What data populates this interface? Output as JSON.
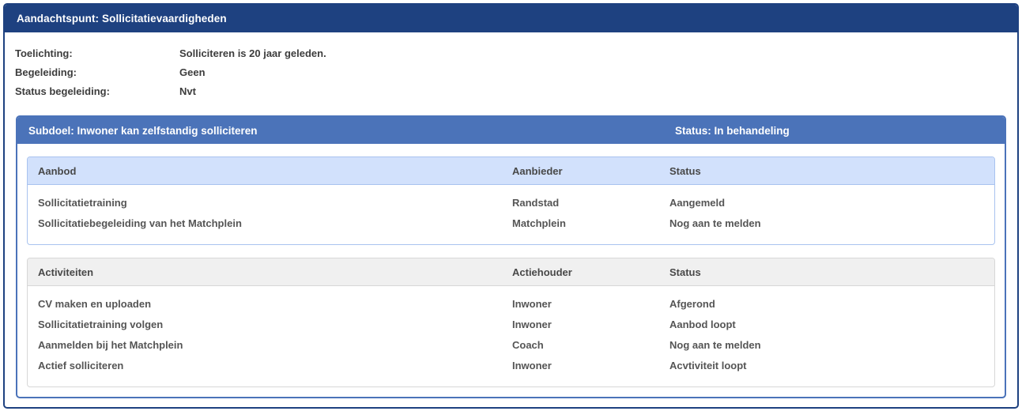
{
  "panel": {
    "title": "Aandachtspunt: Sollicitatievaardigheden",
    "details": [
      {
        "label": "Toelichting:",
        "value": "Solliciteren is 20 jaar geleden."
      },
      {
        "label": "Begeleiding:",
        "value": "Geen"
      },
      {
        "label": "Status begeleiding:",
        "value": "Nvt"
      }
    ]
  },
  "subgoal": {
    "title": "Subdoel: Inwoner kan zelfstandig solliciteren",
    "status_label": "Status: In behandeling",
    "offers_table": {
      "headers": [
        "Aanbod",
        "Aanbieder",
        "Status"
      ],
      "rows": [
        [
          "Sollicitatietraining",
          "Randstad",
          "Aangemeld"
        ],
        [
          "Sollicitatiebegeleiding van het Matchplein",
          "Matchplein",
          "Nog aan te melden"
        ]
      ]
    },
    "activities_table": {
      "headers": [
        "Activiteiten",
        "Actiehouder",
        "Status"
      ],
      "rows": [
        [
          "CV maken en uploaden",
          "Inwoner",
          "Afgerond"
        ],
        [
          "Sollicitatietraining volgen",
          "Inwoner",
          "Aanbod loopt"
        ],
        [
          "Aanmelden bij het Matchplein",
          "Coach",
          "Nog aan te melden"
        ],
        [
          "Actief solliciteren",
          "Inwoner",
          "Acvtiviteit loopt"
        ]
      ]
    }
  },
  "colors": {
    "panel_header_bg": "#1e4180",
    "panel_border": "#1e4180",
    "subgoal_header_bg": "#4b73b9",
    "subgoal_border": "#4b73b9",
    "offers_header_bg": "#d2e1fc",
    "offers_border": "#a9c3ef",
    "activities_header_bg": "#f0f0f0",
    "activities_border": "#d7d7d7",
    "header_text": "#ffffff",
    "body_text": "#3d3d3d",
    "table_text": "#555555"
  }
}
